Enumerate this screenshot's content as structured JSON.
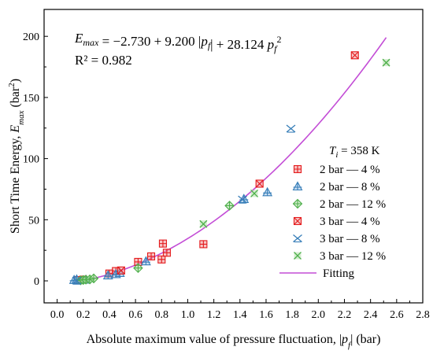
{
  "chart_data": {
    "type": "scatter",
    "xlabel": "Absolute maximum value of pressure fluctuation, |p_f| (bar)",
    "ylabel": "Short Time Energy, E_max (bar^2)",
    "xlim": [
      -0.1,
      2.8
    ],
    "ylim": [
      -18,
      222
    ],
    "x_ticks": [
      "0.0",
      "0.2",
      "0.4",
      "0.6",
      "0.8",
      "1.0",
      "1.2",
      "1.4",
      "1.6",
      "1.8",
      "2.0",
      "2.2",
      "2.4",
      "2.6",
      "2.8"
    ],
    "y_ticks": [
      "0",
      "50",
      "100",
      "150",
      "200"
    ],
    "annotations": {
      "equation": "E_max = −2.730 + 9.200 |p_f| + 28.124 p_f^2",
      "r_squared": "R² = 0.982",
      "legend_title": "T_i = 358 K"
    },
    "fit": {
      "name": "Fitting",
      "color": "#c34dd6",
      "coefficients": [
        -2.73,
        9.2,
        28.124
      ],
      "x_range": [
        0.14,
        2.52
      ]
    },
    "legend": {
      "position": "bottom-right"
    },
    "series": [
      {
        "name": "2 bar — 4 %",
        "marker": "square-plus",
        "color": "#e41a1c",
        "points": [
          [
            0.16,
            0.6
          ],
          [
            0.2,
            1.0
          ],
          [
            0.4,
            6.0
          ],
          [
            0.45,
            8.0
          ],
          [
            0.62,
            15.5
          ],
          [
            0.72,
            20.0
          ],
          [
            0.8,
            17.5
          ],
          [
            0.81,
            30.5
          ],
          [
            0.84,
            23.0
          ],
          [
            1.12,
            30.0
          ]
        ]
      },
      {
        "name": "2 bar — 8 %",
        "marker": "triangle-plus",
        "color": "#377eb8",
        "points": [
          [
            0.13,
            0.8
          ],
          [
            0.15,
            1.2
          ],
          [
            0.22,
            1.0
          ],
          [
            0.39,
            4.5
          ],
          [
            0.45,
            5.5
          ],
          [
            0.48,
            6.5
          ],
          [
            0.68,
            16.0
          ],
          [
            1.43,
            67.0
          ],
          [
            1.61,
            72.5
          ]
        ]
      },
      {
        "name": "2 bar — 12 %",
        "marker": "diamond-plus",
        "color": "#4daf4a",
        "points": [
          [
            0.18,
            0.4
          ],
          [
            0.2,
            0.7
          ],
          [
            0.22,
            1.0
          ],
          [
            0.25,
            1.2
          ],
          [
            0.28,
            2.0
          ],
          [
            0.62,
            10.5
          ],
          [
            1.32,
            61.5
          ]
        ]
      },
      {
        "name": "3 bar — 4 %",
        "marker": "square-x",
        "color": "#e41a1c",
        "points": [
          [
            0.49,
            8.5
          ],
          [
            1.55,
            79.5
          ],
          [
            2.28,
            184.5
          ]
        ]
      },
      {
        "name": "3 bar — 8 %",
        "marker": "triangle-x",
        "color": "#377eb8",
        "points": [
          [
            0.15,
            0.2
          ],
          [
            1.42,
            66.5
          ],
          [
            1.79,
            124.5
          ]
        ]
      },
      {
        "name": "3 bar — 12 %",
        "marker": "square-x-green",
        "color": "#4daf4a",
        "points": [
          [
            1.12,
            46.5
          ],
          [
            1.51,
            71.5
          ],
          [
            2.52,
            178.5
          ]
        ]
      }
    ]
  }
}
